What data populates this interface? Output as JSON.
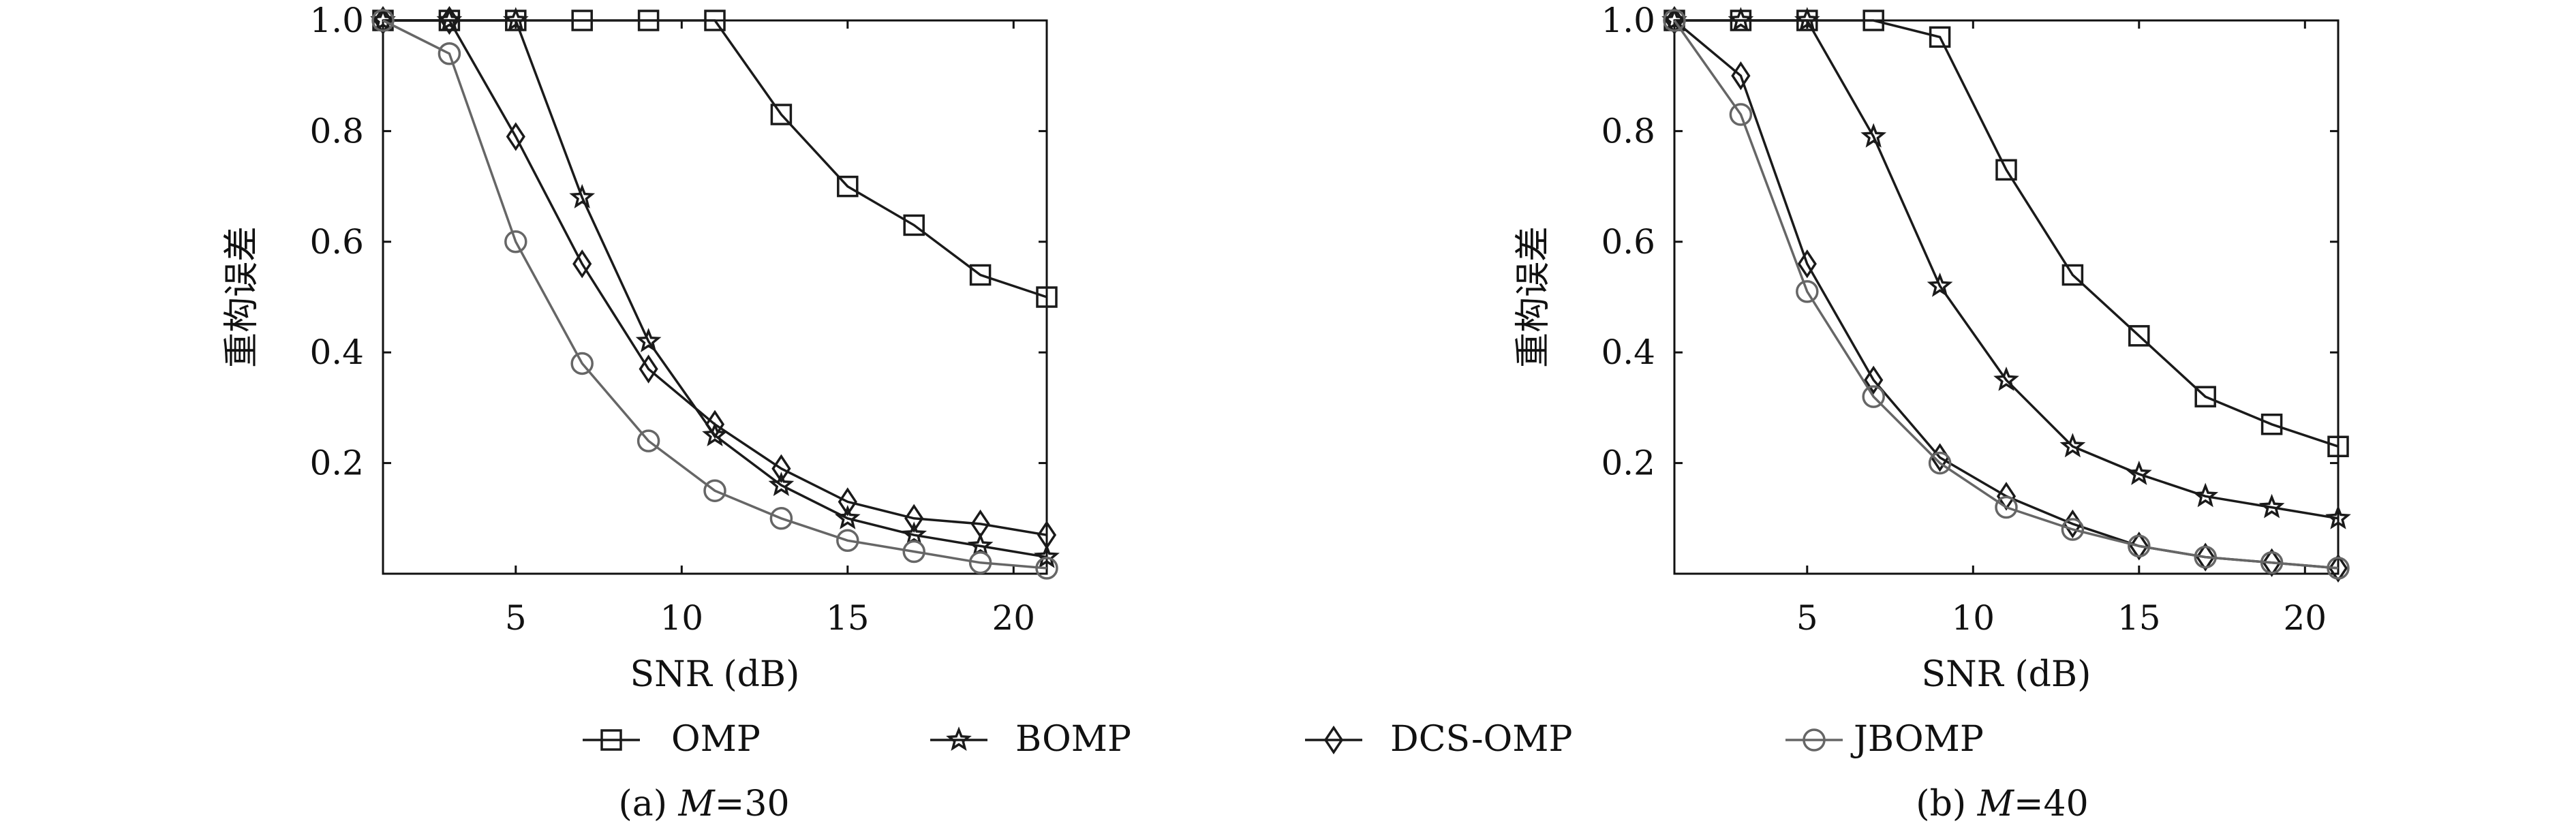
{
  "legend": [
    {
      "name": "OMP",
      "marker": "square",
      "color": "#1a1a1a"
    },
    {
      "name": "BOMP",
      "marker": "star",
      "color": "#1a1a1a"
    },
    {
      "name": "DCS-OMP",
      "marker": "diamond",
      "color": "#1a1a1a"
    },
    {
      "name": "JBOMP",
      "marker": "circle",
      "color": "#666666"
    }
  ],
  "chart_data": [
    {
      "type": "line",
      "caption_prefix": "(a) ",
      "caption_var": "M",
      "caption_suffix": "=30",
      "xlabel": "SNR (dB)",
      "ylabel": "重构误差",
      "xlim": [
        1,
        21
      ],
      "ylim": [
        0,
        1.0
      ],
      "xticks": [
        5,
        10,
        15,
        20
      ],
      "yticks": [
        0.2,
        0.4,
        0.6,
        0.8,
        1.0
      ],
      "x": [
        1,
        3,
        5,
        7,
        9,
        11,
        13,
        15,
        17,
        19,
        21
      ],
      "series": [
        {
          "name": "OMP",
          "values": [
            1.0,
            1.0,
            1.0,
            1.0,
            1.0,
            1.0,
            0.83,
            0.7,
            0.63,
            0.54,
            0.5
          ]
        },
        {
          "name": "BOMP",
          "values": [
            1.0,
            1.0,
            1.0,
            0.68,
            0.42,
            0.25,
            0.16,
            0.1,
            0.07,
            0.05,
            0.03
          ]
        },
        {
          "name": "DCS-OMP",
          "values": [
            1.0,
            1.0,
            0.79,
            0.56,
            0.37,
            0.27,
            0.19,
            0.13,
            0.1,
            0.09,
            0.07
          ]
        },
        {
          "name": "JBOMP",
          "values": [
            1.0,
            0.94,
            0.6,
            0.38,
            0.24,
            0.15,
            0.1,
            0.06,
            0.04,
            0.02,
            0.01
          ]
        }
      ]
    },
    {
      "type": "line",
      "caption_prefix": "(b) ",
      "caption_var": "M",
      "caption_suffix": "=40",
      "xlabel": "SNR (dB)",
      "ylabel": "重构误差",
      "xlim": [
        1,
        21
      ],
      "ylim": [
        0,
        1.0
      ],
      "xticks": [
        5,
        10,
        15,
        20
      ],
      "yticks": [
        0.2,
        0.4,
        0.6,
        0.8,
        1.0
      ],
      "x": [
        1,
        3,
        5,
        7,
        9,
        11,
        13,
        15,
        17,
        19,
        21
      ],
      "series": [
        {
          "name": "OMP",
          "values": [
            1.0,
            1.0,
            1.0,
            1.0,
            0.97,
            0.73,
            0.54,
            0.43,
            0.32,
            0.27,
            0.23
          ]
        },
        {
          "name": "BOMP",
          "values": [
            1.0,
            1.0,
            1.0,
            0.79,
            0.52,
            0.35,
            0.23,
            0.18,
            0.14,
            0.12,
            0.1
          ]
        },
        {
          "name": "DCS-OMP",
          "values": [
            1.0,
            0.9,
            0.56,
            0.35,
            0.21,
            0.14,
            0.09,
            0.05,
            0.03,
            0.02,
            0.01
          ]
        },
        {
          "name": "JBOMP",
          "values": [
            1.0,
            0.83,
            0.51,
            0.32,
            0.2,
            0.12,
            0.08,
            0.05,
            0.03,
            0.02,
            0.01
          ]
        }
      ]
    }
  ]
}
